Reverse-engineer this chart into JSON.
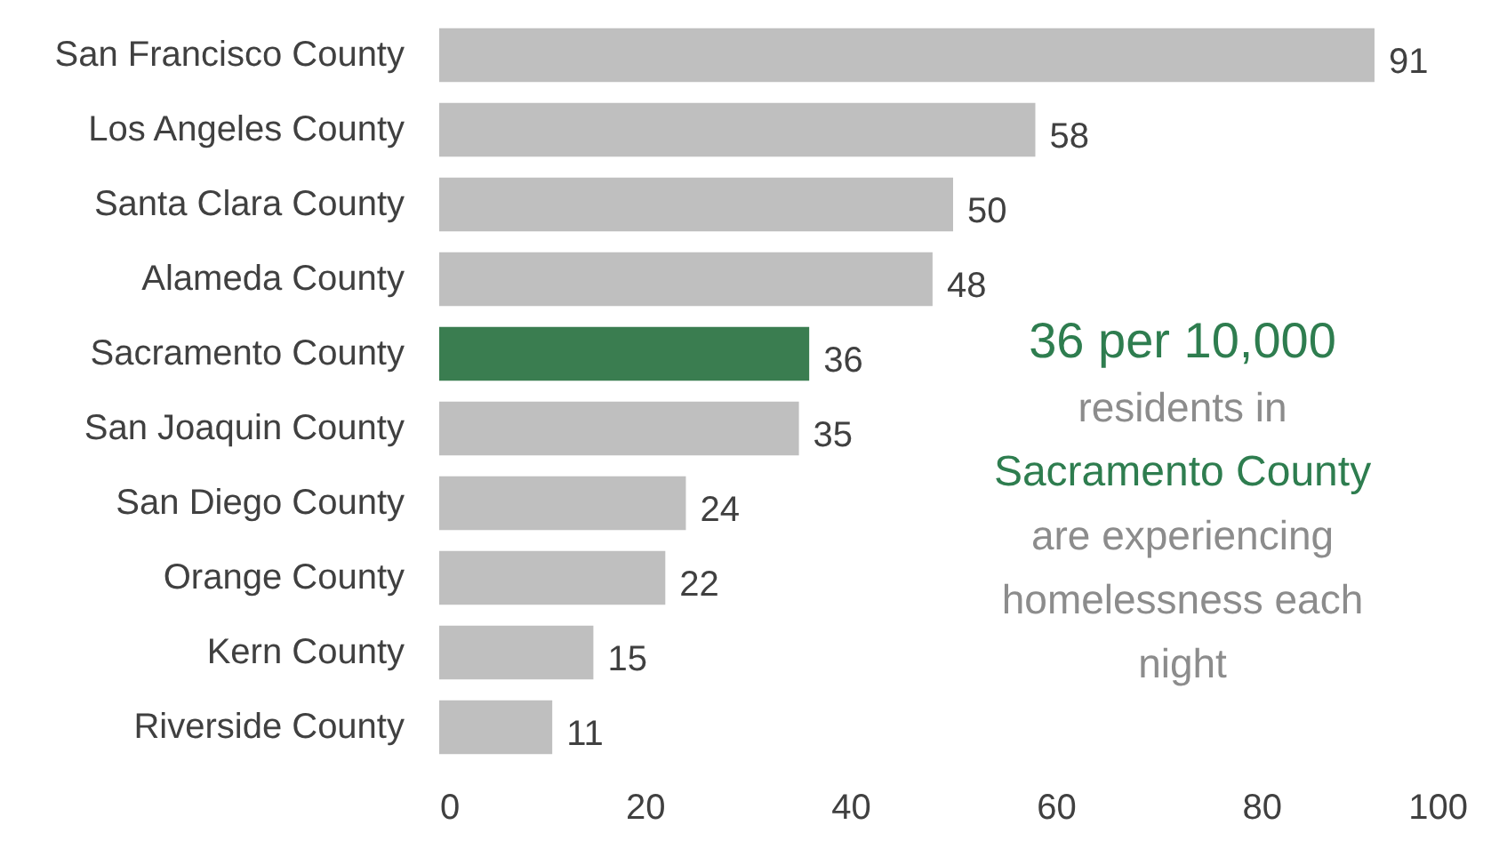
{
  "chart_data": {
    "type": "bar",
    "orientation": "horizontal",
    "categories": [
      "San Francisco County",
      "Los Angeles County",
      "Santa Clara County",
      "Alameda County",
      "Sacramento County",
      "San Joaquin County",
      "San Diego County",
      "Orange County",
      "Kern County",
      "Riverside County"
    ],
    "values": [
      91,
      58,
      50,
      48,
      36,
      35,
      24,
      22,
      15,
      11
    ],
    "colors": [
      "#bfbfbf",
      "#bfbfbf",
      "#bfbfbf",
      "#bfbfbf",
      "#3a7d50",
      "#bfbfbf",
      "#bfbfbf",
      "#bfbfbf",
      "#bfbfbf",
      "#bfbfbf"
    ],
    "xlim": [
      0,
      100
    ],
    "xticks": [
      0,
      20,
      40,
      60,
      80,
      100
    ],
    "data_labels": true,
    "annotations": [
      "36 per 10,000",
      "residents in",
      "Sacramento County",
      "are experiencing",
      "homelessness each",
      "night"
    ]
  }
}
